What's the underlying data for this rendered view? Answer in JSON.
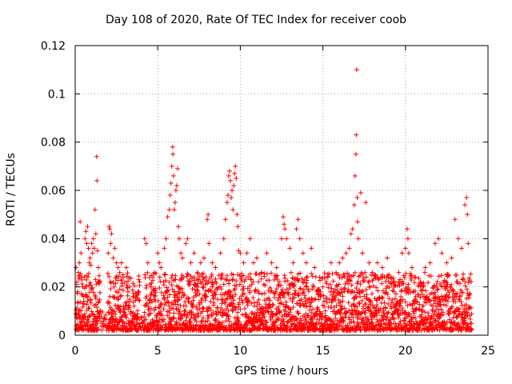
{
  "chart_data": {
    "type": "scatter",
    "title": "Day 108 of 2020, Rate Of TEC Index for receiver coob",
    "xlabel": "GPS time / hours",
    "ylabel": "ROTI / TECUs",
    "xlim": [
      0,
      25
    ],
    "ylim": [
      0,
      0.12
    ],
    "xticks": [
      0,
      5,
      10,
      15,
      20,
      25
    ],
    "xtick_labels": [
      "0",
      "5",
      "10",
      "15",
      "20",
      "25"
    ],
    "yticks": [
      0,
      0.02,
      0.04,
      0.06,
      0.08,
      0.1,
      0.12
    ],
    "ytick_labels": [
      "0",
      "0.02",
      "0.04",
      "0.06",
      "0.08",
      "0.1",
      "0.12"
    ],
    "grid": true,
    "marker": "+",
    "marker_color": "#ff0000",
    "series": [
      {
        "name": "ROTI",
        "points": [
          [
            0.05,
            0.028
          ],
          [
            0.1,
            0.022
          ],
          [
            0.15,
            0.018
          ],
          [
            0.2,
            0.026
          ],
          [
            0.25,
            0.03
          ],
          [
            0.3,
            0.047
          ],
          [
            0.35,
            0.034
          ],
          [
            0.4,
            0.024
          ],
          [
            0.45,
            0.02
          ],
          [
            0.5,
            0.016
          ],
          [
            0.6,
            0.04
          ],
          [
            0.65,
            0.043
          ],
          [
            0.7,
            0.038
          ],
          [
            0.75,
            0.045
          ],
          [
            0.8,
            0.036
          ],
          [
            0.85,
            0.03
          ],
          [
            0.9,
            0.032
          ],
          [
            0.95,
            0.029
          ],
          [
            1.0,
            0.038
          ],
          [
            1.05,
            0.034
          ],
          [
            1.1,
            0.04
          ],
          [
            1.15,
            0.036
          ],
          [
            1.2,
            0.052
          ],
          [
            1.25,
            0.042
          ],
          [
            1.3,
            0.074
          ],
          [
            1.32,
            0.064
          ],
          [
            1.35,
            0.035
          ],
          [
            1.4,
            0.028
          ],
          [
            1.45,
            0.022
          ],
          [
            2.0,
            0.034
          ],
          [
            2.05,
            0.045
          ],
          [
            2.1,
            0.044
          ],
          [
            2.15,
            0.038
          ],
          [
            2.2,
            0.042
          ],
          [
            2.3,
            0.032
          ],
          [
            2.4,
            0.036
          ],
          [
            2.5,
            0.03
          ],
          [
            2.6,
            0.028
          ],
          [
            2.7,
            0.026
          ],
          [
            2.8,
            0.03
          ],
          [
            2.9,
            0.024
          ],
          [
            3.0,
            0.022
          ],
          [
            3.1,
            0.028
          ],
          [
            3.2,
            0.018
          ],
          [
            3.3,
            0.02
          ],
          [
            3.5,
            0.016
          ],
          [
            3.8,
            0.018
          ],
          [
            4.2,
            0.04
          ],
          [
            4.3,
            0.038
          ],
          [
            4.4,
            0.03
          ],
          [
            4.6,
            0.02
          ],
          [
            4.8,
            0.026
          ],
          [
            5.0,
            0.034
          ],
          [
            5.1,
            0.03
          ],
          [
            5.2,
            0.028
          ],
          [
            5.4,
            0.036
          ],
          [
            5.5,
            0.04
          ],
          [
            5.6,
            0.049
          ],
          [
            5.7,
            0.052
          ],
          [
            5.75,
            0.058
          ],
          [
            5.8,
            0.063
          ],
          [
            5.85,
            0.07
          ],
          [
            5.9,
            0.078
          ],
          [
            5.92,
            0.075
          ],
          [
            5.95,
            0.066
          ],
          [
            6.0,
            0.052
          ],
          [
            6.05,
            0.055
          ],
          [
            6.1,
            0.06
          ],
          [
            6.15,
            0.062
          ],
          [
            6.2,
            0.069
          ],
          [
            6.25,
            0.045
          ],
          [
            6.3,
            0.04
          ],
          [
            6.4,
            0.034
          ],
          [
            6.5,
            0.032
          ],
          [
            6.7,
            0.038
          ],
          [
            6.8,
            0.04
          ],
          [
            7.0,
            0.03
          ],
          [
            7.2,
            0.034
          ],
          [
            7.4,
            0.026
          ],
          [
            7.6,
            0.03
          ],
          [
            7.8,
            0.032
          ],
          [
            8.0,
            0.048
          ],
          [
            8.05,
            0.05
          ],
          [
            8.1,
            0.038
          ],
          [
            8.3,
            0.03
          ],
          [
            8.5,
            0.028
          ],
          [
            8.8,
            0.034
          ],
          [
            9.0,
            0.04
          ],
          [
            9.1,
            0.048
          ],
          [
            9.2,
            0.055
          ],
          [
            9.25,
            0.058
          ],
          [
            9.3,
            0.066
          ],
          [
            9.35,
            0.068
          ],
          [
            9.4,
            0.064
          ],
          [
            9.45,
            0.057
          ],
          [
            9.5,
            0.06
          ],
          [
            9.55,
            0.052
          ],
          [
            9.6,
            0.062
          ],
          [
            9.65,
            0.067
          ],
          [
            9.7,
            0.07
          ],
          [
            9.75,
            0.065
          ],
          [
            9.8,
            0.05
          ],
          [
            9.85,
            0.045
          ],
          [
            9.9,
            0.035
          ],
          [
            10.0,
            0.034
          ],
          [
            10.2,
            0.03
          ],
          [
            10.4,
            0.034
          ],
          [
            10.6,
            0.04
          ],
          [
            10.8,
            0.03
          ],
          [
            11.0,
            0.032
          ],
          [
            11.3,
            0.026
          ],
          [
            11.6,
            0.034
          ],
          [
            11.9,
            0.03
          ],
          [
            12.2,
            0.028
          ],
          [
            12.5,
            0.04
          ],
          [
            12.6,
            0.049
          ],
          [
            12.65,
            0.046
          ],
          [
            12.7,
            0.044
          ],
          [
            12.8,
            0.04
          ],
          [
            13.0,
            0.036
          ],
          [
            13.2,
            0.03
          ],
          [
            13.4,
            0.044
          ],
          [
            13.5,
            0.048
          ],
          [
            13.6,
            0.04
          ],
          [
            13.8,
            0.034
          ],
          [
            14.0,
            0.03
          ],
          [
            14.3,
            0.036
          ],
          [
            14.5,
            0.028
          ],
          [
            14.8,
            0.024
          ],
          [
            15.0,
            0.02
          ],
          [
            15.3,
            0.024
          ],
          [
            15.5,
            0.03
          ],
          [
            15.8,
            0.026
          ],
          [
            16.0,
            0.03
          ],
          [
            16.2,
            0.032
          ],
          [
            16.4,
            0.034
          ],
          [
            16.6,
            0.036
          ],
          [
            16.7,
            0.042
          ],
          [
            16.8,
            0.044
          ],
          [
            16.9,
            0.054
          ],
          [
            16.95,
            0.066
          ],
          [
            17.0,
            0.075
          ],
          [
            17.02,
            0.083
          ],
          [
            17.05,
            0.11
          ],
          [
            17.08,
            0.057
          ],
          [
            17.1,
            0.047
          ],
          [
            17.15,
            0.04
          ],
          [
            17.3,
            0.059
          ],
          [
            17.4,
            0.034
          ],
          [
            17.6,
            0.055
          ],
          [
            17.8,
            0.03
          ],
          [
            18.0,
            0.026
          ],
          [
            18.3,
            0.03
          ],
          [
            18.6,
            0.028
          ],
          [
            18.9,
            0.032
          ],
          [
            19.0,
            0.024
          ],
          [
            19.3,
            0.02
          ],
          [
            19.6,
            0.026
          ],
          [
            19.8,
            0.034
          ],
          [
            20.0,
            0.036
          ],
          [
            20.1,
            0.044
          ],
          [
            20.15,
            0.04
          ],
          [
            20.2,
            0.034
          ],
          [
            20.4,
            0.028
          ],
          [
            20.6,
            0.024
          ],
          [
            20.9,
            0.022
          ],
          [
            21.2,
            0.028
          ],
          [
            21.5,
            0.03
          ],
          [
            21.8,
            0.038
          ],
          [
            22.0,
            0.04
          ],
          [
            22.2,
            0.034
          ],
          [
            22.5,
            0.03
          ],
          [
            22.8,
            0.032
          ],
          [
            23.0,
            0.048
          ],
          [
            23.2,
            0.04
          ],
          [
            23.4,
            0.036
          ],
          [
            23.6,
            0.054
          ],
          [
            23.7,
            0.057
          ],
          [
            23.75,
            0.05
          ],
          [
            23.8,
            0.038
          ]
        ]
      }
    ]
  }
}
